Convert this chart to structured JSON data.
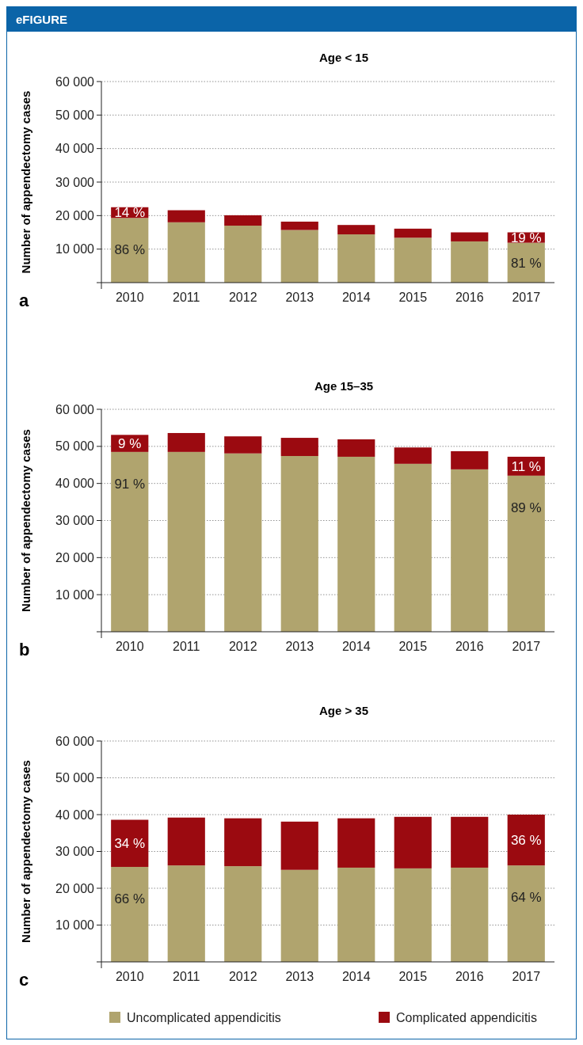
{
  "chart_data": [
    {
      "type": "bar",
      "title": "Age < 15",
      "ylabel": "Number of appendectomy cases",
      "stacked": true,
      "categories": [
        "2010",
        "2011",
        "2012",
        "2013",
        "2014",
        "2015",
        "2016",
        "2017"
      ],
      "annotations": [
        "eFIGURE",
        "a",
        {
          "text": "86 %",
          "x": "2010",
          "y": 19300
        },
        {
          "text": "14 %",
          "x": "2010",
          "y": 22500
        },
        {
          "text": "81 %",
          "x": "2017",
          "y": 11900
        },
        {
          "text": "19 %",
          "x": "2017",
          "y": 15000
        }
      ],
      "series": [
        {
          "color": "#b0a46e",
          "values": [
            19300,
            18000,
            17000,
            15700,
            14400,
            13400,
            12300,
            11900
          ]
        },
        {
          "color": "#9b0a10",
          "values": [
            3200,
            3600,
            3100,
            2500,
            2800,
            2700,
            2700,
            3100
          ]
        }
      ],
      "ylim": [
        0,
        60000
      ],
      "yticks": [
        {
          "value": 10000,
          "label": "10 000"
        },
        {
          "value": 20000,
          "label": "20 000"
        },
        {
          "value": 30000,
          "label": "30 000"
        },
        {
          "value": 40000,
          "label": "40 000"
        },
        {
          "value": 50000,
          "label": "50 000"
        },
        {
          "value": 60000,
          "label": "60 000"
        }
      ],
      "grid": "y"
    },
    {
      "type": "bar",
      "title": "Age 15–35",
      "ylabel": "Number of appendectomy cases",
      "stacked": true,
      "categories": [
        "2010",
        "2011",
        "2012",
        "2013",
        "2014",
        "2015",
        "2016",
        "2017"
      ],
      "annotations": [
        "b",
        {
          "text": "91 %",
          "x": "2010",
          "y": 48500
        },
        {
          "text": "9 %",
          "x": "2010",
          "y": 53100
        },
        {
          "text": "89 %",
          "x": "2017",
          "y": 42100
        },
        {
          "text": "11 %",
          "x": "2017",
          "y": 47200
        }
      ],
      "series": [
        {
          "color": "#b0a46e",
          "values": [
            48500,
            48500,
            48100,
            47400,
            47200,
            45300,
            43800,
            42100
          ]
        },
        {
          "color": "#9b0a10",
          "values": [
            4600,
            5100,
            4600,
            4900,
            4700,
            4400,
            4900,
            5100
          ]
        }
      ],
      "ylim": [
        0,
        60000
      ],
      "yticks": [
        {
          "value": 10000,
          "label": "10 000"
        },
        {
          "value": 20000,
          "label": "20 000"
        },
        {
          "value": 30000,
          "label": "30 000"
        },
        {
          "value": 40000,
          "label": "40 000"
        },
        {
          "value": 50000,
          "label": "50 000"
        },
        {
          "value": 60000,
          "label": "60 000"
        }
      ],
      "grid": "y"
    },
    {
      "type": "bar",
      "title": "Age > 35",
      "ylabel": "Number of appendectomy cases",
      "stacked": true,
      "legend": "bottom",
      "categories": [
        "2010",
        "2011",
        "2012",
        "2013",
        "2014",
        "2015",
        "2016",
        "2017"
      ],
      "annotations": [
        "c",
        {
          "text": "66 %",
          "x": "2010",
          "y": 25800
        },
        {
          "text": "34 %",
          "x": "2010",
          "y": 38600
        },
        {
          "text": "64 %",
          "x": "2017",
          "y": 26200
        },
        {
          "text": "36 %",
          "x": "2017",
          "y": 40000
        }
      ],
      "series": [
        {
          "name": "Uncomplicated appendicitis",
          "color": "#b0a46e",
          "values": [
            25800,
            26200,
            26000,
            25000,
            25600,
            25400,
            25600,
            26200
          ]
        },
        {
          "name": "Complicated appendicitis",
          "color": "#9b0a10",
          "values": [
            12800,
            13000,
            13000,
            13100,
            13400,
            14000,
            13800,
            13800
          ]
        }
      ],
      "ylim": [
        0,
        60000
      ],
      "yticks": [
        {
          "value": 10000,
          "label": "10 000"
        },
        {
          "value": 20000,
          "label": "20 000"
        },
        {
          "value": 30000,
          "label": "30 000"
        },
        {
          "value": 40000,
          "label": "40 000"
        },
        {
          "value": 50000,
          "label": "50 000"
        },
        {
          "value": 60000,
          "label": "60 000"
        }
      ],
      "grid": "y"
    }
  ]
}
